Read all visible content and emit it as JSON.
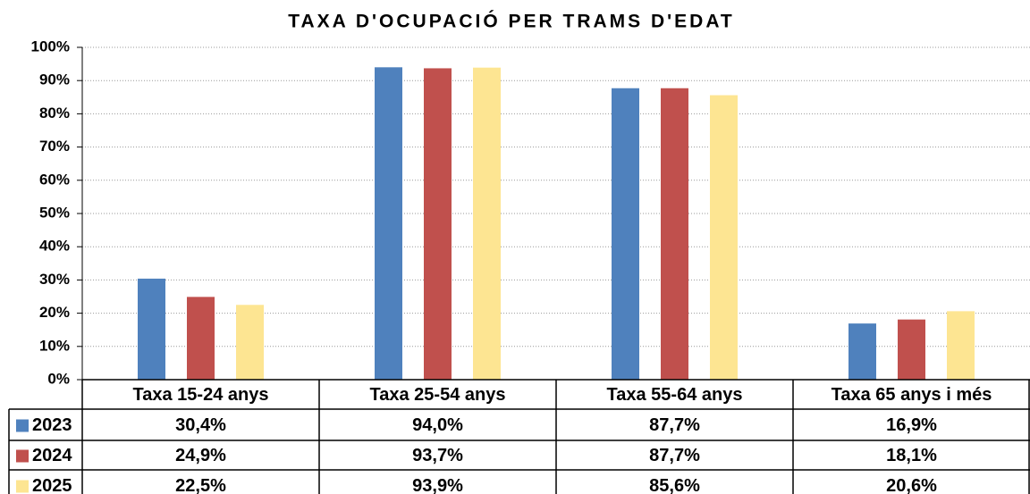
{
  "chart_data": {
    "type": "bar",
    "title": "TAXA D'OCUPACIÓ PER TRAMS D'EDAT",
    "categories": [
      "Taxa 15-24 anys",
      "Taxa 25-54 anys",
      "Taxa 55-64 anys",
      "Taxa 65 anys i més"
    ],
    "series": [
      {
        "name": "2023",
        "color": "#4f81bd",
        "values": [
          30.4,
          94.0,
          87.7,
          16.9
        ],
        "value_labels": [
          "30,4%",
          "94,0%",
          "87,7%",
          "16,9%"
        ]
      },
      {
        "name": "2024",
        "color": "#c0504d",
        "values": [
          24.9,
          93.7,
          87.7,
          18.1
        ],
        "value_labels": [
          "24,9%",
          "93,7%",
          "87,7%",
          "18,1%"
        ]
      },
      {
        "name": "2025",
        "color": "#fde592",
        "values": [
          22.5,
          93.9,
          85.6,
          20.6
        ],
        "value_labels": [
          "22,5%",
          "93,9%",
          "85,6%",
          "20,6%"
        ]
      }
    ],
    "ylim": [
      0,
      100
    ],
    "yticks": [
      {
        "value": 0,
        "label": "0%"
      },
      {
        "value": 10,
        "label": "10%"
      },
      {
        "value": 20,
        "label": "20%"
      },
      {
        "value": 30,
        "label": "30%"
      },
      {
        "value": 40,
        "label": "40%"
      },
      {
        "value": 50,
        "label": "50%"
      },
      {
        "value": 60,
        "label": "60%"
      },
      {
        "value": 70,
        "label": "70%"
      },
      {
        "value": 80,
        "label": "80%"
      },
      {
        "value": 90,
        "label": "90%"
      },
      {
        "value": 100,
        "label": "100%"
      }
    ],
    "grid": true
  }
}
